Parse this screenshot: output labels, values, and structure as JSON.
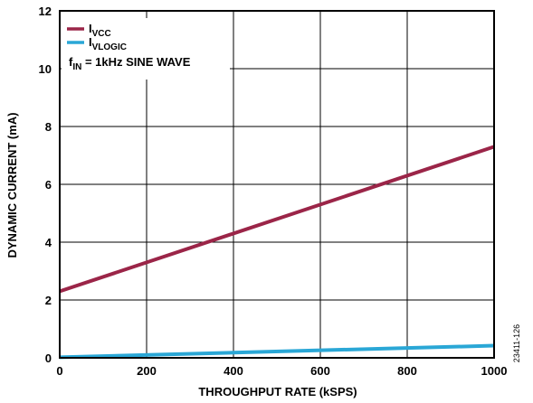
{
  "chart_data": {
    "type": "line",
    "xlabel": "THROUGHPUT RATE (kSPS)",
    "ylabel": "DYNAMIC CURRENT (mA)",
    "xlim": [
      0,
      1000
    ],
    "ylim": [
      0,
      12
    ],
    "xticks": [
      0,
      200,
      400,
      600,
      800,
      1000
    ],
    "yticks": [
      0,
      2,
      4,
      6,
      8,
      10,
      12
    ],
    "grid": true,
    "legend_position": "top-left",
    "annotation": {
      "prefix": "f",
      "subscript": "IN",
      "text": " = 1kHz SINE WAVE"
    },
    "series": [
      {
        "name": "VCC",
        "name_prefix": "I",
        "color": "#9b2548",
        "x": [
          0,
          1000
        ],
        "y": [
          2.3,
          7.3
        ]
      },
      {
        "name": "VLOGIC",
        "name_prefix": "I",
        "color": "#2aa7d6",
        "x": [
          0,
          1000
        ],
        "y": [
          0.02,
          0.42
        ]
      }
    ]
  },
  "figure_id": "23411-126"
}
